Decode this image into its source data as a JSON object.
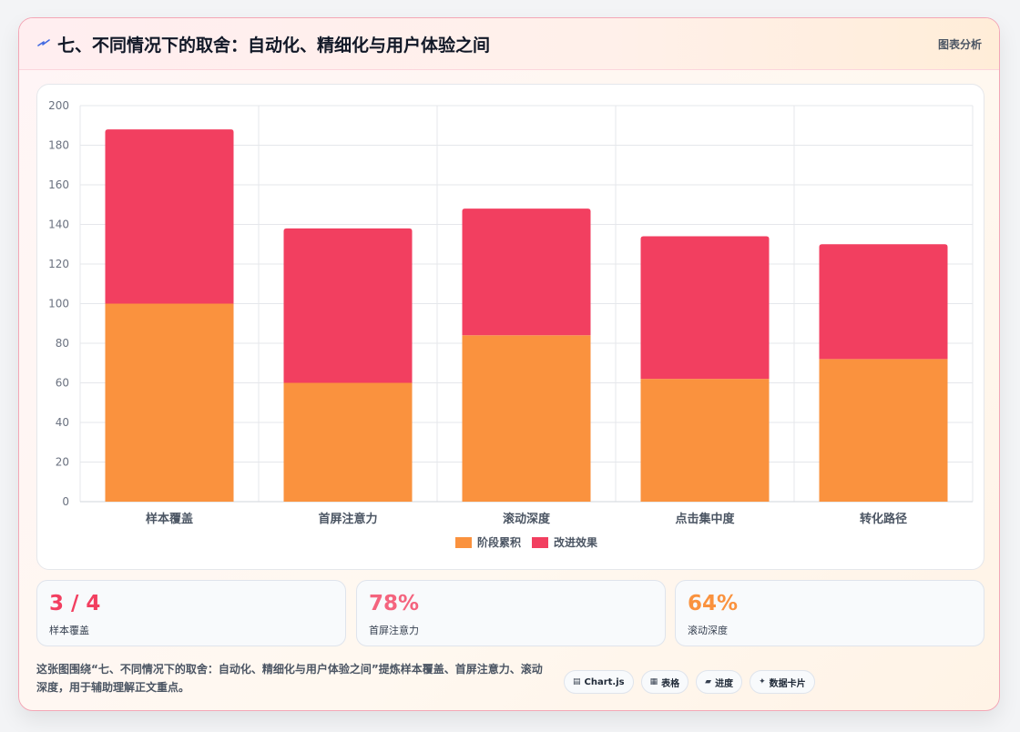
{
  "header": {
    "title": "七、不同情况下的取舍：自动化、精细化与用户体验之间",
    "tag": "图表分析"
  },
  "chart_data": {
    "type": "bar",
    "stacked": true,
    "categories": [
      "样本覆盖",
      "首屏注意力",
      "滚动深度",
      "点击集中度",
      "转化路径"
    ],
    "series": [
      {
        "name": "阶段累积",
        "color": "#fa923e",
        "values": [
          100,
          60,
          84,
          62,
          72
        ]
      },
      {
        "name": "改进效果",
        "color": "#f23f60",
        "values": [
          88,
          78,
          64,
          72,
          58
        ]
      }
    ],
    "ylim": [
      0,
      200
    ],
    "yticks": [
      0,
      20,
      40,
      60,
      80,
      100,
      120,
      140,
      160,
      180,
      200
    ],
    "grid": true,
    "legend_position": "bottom"
  },
  "stats": [
    {
      "value": "3 / 4",
      "label": "样本覆盖",
      "color": "#f23f60"
    },
    {
      "value": "78%",
      "label": "首屏注意力",
      "color": "#f4647e"
    },
    {
      "value": "64%",
      "label": "滚动深度",
      "color": "#fa923e"
    }
  ],
  "description": "这张图围绕“七、不同情况下的取舍：自动化、精细化与用户体验之间”提炼样本覆盖、首屏注意力、滚动深度，用于辅助理解正文重点。",
  "chips": [
    {
      "icon": "▤",
      "icon_name": "chart-icon",
      "label": "Chart.js"
    },
    {
      "icon": "▦",
      "icon_name": "table-icon",
      "label": "表格"
    },
    {
      "icon": "▰",
      "icon_name": "progress-icon",
      "label": "进度"
    },
    {
      "icon": "✦",
      "icon_name": "sparkle-icon",
      "label": "数据卡片"
    }
  ]
}
